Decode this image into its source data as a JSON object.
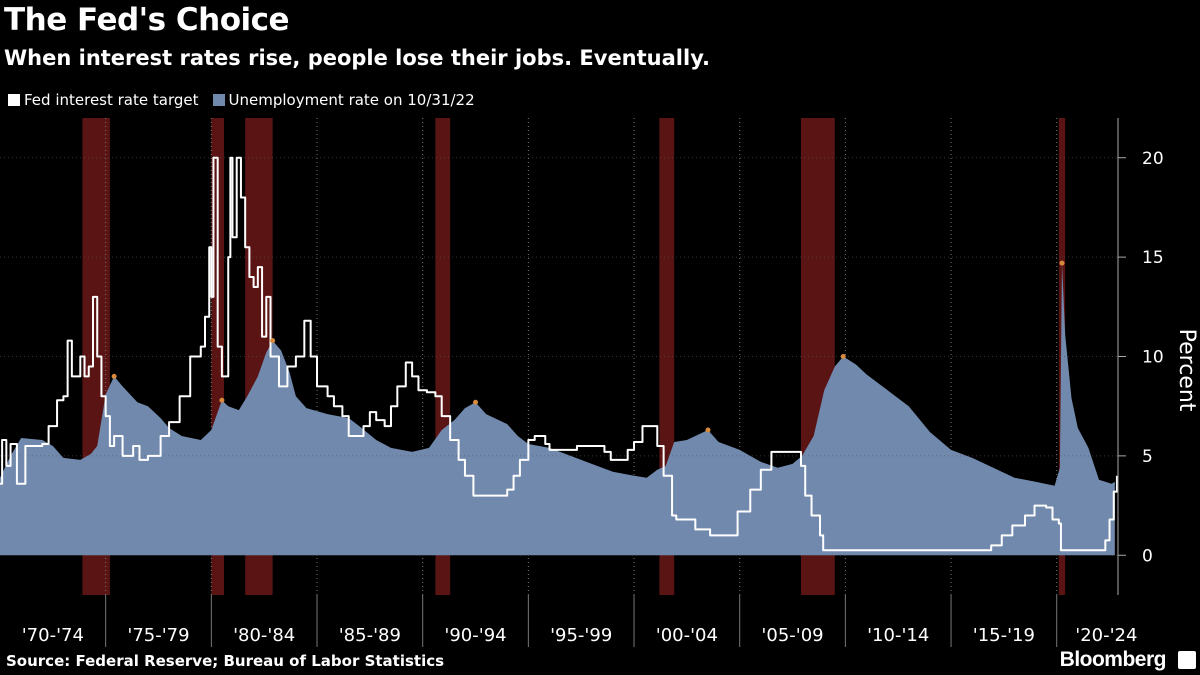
{
  "title": "The Fed's Choice",
  "subtitle": "When interest rates rise, people lose their jobs. Eventually.",
  "source": "Source: Federal Reserve; Bureau of Labor Statistics",
  "brand": "Bloomberg",
  "colors": {
    "background": "#000000",
    "fed_line": "#ffffff",
    "unemployment_area": "#7089ad",
    "recession": "#5a1414",
    "peak_marker": "#d88a3c"
  },
  "chart_data": {
    "type": "area",
    "title": "The Fed's Choice",
    "ylabel": "Percent",
    "ylim": [
      -2,
      22
    ],
    "yticks": [
      0,
      5,
      10,
      15,
      20
    ],
    "xlim": [
      1970.0,
      2022.9
    ],
    "period_labels": [
      "'70-'74",
      "'75-'79",
      "'80-'84",
      "'85-'89",
      "'90-'94",
      "'95-'99",
      "'00-'04",
      "'05-'09",
      "'10-'14",
      "'15-'19",
      "'20-'24"
    ],
    "recessions": [
      [
        1973.9,
        1975.2
      ],
      [
        1980.0,
        1980.6
      ],
      [
        1981.6,
        1982.9
      ],
      [
        1990.6,
        1991.3
      ],
      [
        2001.2,
        2001.9
      ],
      [
        2007.9,
        2009.5
      ],
      [
        2020.1,
        2020.4
      ]
    ],
    "series": [
      {
        "name": "Fed interest rate target",
        "kind": "line",
        "points": [
          [
            1970.0,
            3.6
          ],
          [
            1970.1,
            5.8
          ],
          [
            1970.3,
            4.5
          ],
          [
            1970.5,
            5.6
          ],
          [
            1970.8,
            3.6
          ],
          [
            1971.0,
            3.6
          ],
          [
            1971.2,
            5.5
          ],
          [
            1971.7,
            5.5
          ],
          [
            1972.0,
            5.6
          ],
          [
            1972.3,
            6.5
          ],
          [
            1972.7,
            7.8
          ],
          [
            1973.0,
            8.0
          ],
          [
            1973.2,
            10.8
          ],
          [
            1973.4,
            9.0
          ],
          [
            1973.8,
            10.0
          ],
          [
            1974.0,
            9.0
          ],
          [
            1974.2,
            9.5
          ],
          [
            1974.4,
            13.0
          ],
          [
            1974.6,
            10.0
          ],
          [
            1974.8,
            8.0
          ],
          [
            1975.0,
            7.0
          ],
          [
            1975.2,
            5.5
          ],
          [
            1975.4,
            6.0
          ],
          [
            1975.8,
            5.0
          ],
          [
            1976.0,
            5.0
          ],
          [
            1976.3,
            5.5
          ],
          [
            1976.6,
            4.8
          ],
          [
            1977.0,
            5.0
          ],
          [
            1977.6,
            6.0
          ],
          [
            1978.0,
            6.7
          ],
          [
            1978.5,
            8.0
          ],
          [
            1979.0,
            10.0
          ],
          [
            1979.5,
            10.5
          ],
          [
            1979.7,
            12.0
          ],
          [
            1979.9,
            15.5
          ],
          [
            1980.0,
            13.0
          ],
          [
            1980.1,
            20.0
          ],
          [
            1980.3,
            10.5
          ],
          [
            1980.5,
            9.0
          ],
          [
            1980.8,
            15.0
          ],
          [
            1980.9,
            20.0
          ],
          [
            1981.0,
            16.0
          ],
          [
            1981.2,
            20.0
          ],
          [
            1981.4,
            18.0
          ],
          [
            1981.6,
            15.5
          ],
          [
            1981.8,
            14.0
          ],
          [
            1982.0,
            13.5
          ],
          [
            1982.2,
            14.5
          ],
          [
            1982.4,
            11.0
          ],
          [
            1982.6,
            13.0
          ],
          [
            1982.8,
            10.0
          ],
          [
            1983.2,
            8.5
          ],
          [
            1983.6,
            9.5
          ],
          [
            1984.0,
            10.0
          ],
          [
            1984.4,
            11.8
          ],
          [
            1984.7,
            10.0
          ],
          [
            1985.0,
            8.5
          ],
          [
            1985.5,
            8.0
          ],
          [
            1985.8,
            7.5
          ],
          [
            1986.2,
            7.0
          ],
          [
            1986.5,
            6.0
          ],
          [
            1986.9,
            6.0
          ],
          [
            1987.2,
            6.5
          ],
          [
            1987.5,
            7.2
          ],
          [
            1987.8,
            6.8
          ],
          [
            1988.2,
            6.5
          ],
          [
            1988.5,
            7.5
          ],
          [
            1988.8,
            8.5
          ],
          [
            1989.2,
            9.7
          ],
          [
            1989.5,
            9.0
          ],
          [
            1989.8,
            8.3
          ],
          [
            1990.2,
            8.2
          ],
          [
            1990.6,
            8.0
          ],
          [
            1990.9,
            7.0
          ],
          [
            1991.3,
            5.8
          ],
          [
            1991.7,
            4.8
          ],
          [
            1992.0,
            4.0
          ],
          [
            1992.4,
            3.0
          ],
          [
            1993.0,
            3.0
          ],
          [
            1993.6,
            3.0
          ],
          [
            1994.0,
            3.3
          ],
          [
            1994.3,
            4.0
          ],
          [
            1994.6,
            4.8
          ],
          [
            1995.0,
            5.8
          ],
          [
            1995.3,
            6.0
          ],
          [
            1995.8,
            5.6
          ],
          [
            1996.0,
            5.3
          ],
          [
            1997.3,
            5.5
          ],
          [
            1998.6,
            5.2
          ],
          [
            1998.9,
            4.8
          ],
          [
            1999.3,
            4.8
          ],
          [
            1999.7,
            5.3
          ],
          [
            2000.0,
            5.7
          ],
          [
            2000.4,
            6.5
          ],
          [
            2000.9,
            6.5
          ],
          [
            2001.1,
            5.5
          ],
          [
            2001.4,
            4.0
          ],
          [
            2001.8,
            2.0
          ],
          [
            2002.0,
            1.8
          ],
          [
            2002.9,
            1.3
          ],
          [
            2003.6,
            1.0
          ],
          [
            2004.4,
            1.0
          ],
          [
            2004.9,
            2.2
          ],
          [
            2005.5,
            3.3
          ],
          [
            2006.0,
            4.3
          ],
          [
            2006.5,
            5.2
          ],
          [
            2007.6,
            5.2
          ],
          [
            2007.9,
            4.5
          ],
          [
            2008.1,
            3.0
          ],
          [
            2008.4,
            2.0
          ],
          [
            2008.8,
            1.0
          ],
          [
            2008.95,
            0.25
          ],
          [
            2015.9,
            0.25
          ],
          [
            2016.9,
            0.5
          ],
          [
            2017.4,
            1.0
          ],
          [
            2017.9,
            1.5
          ],
          [
            2018.5,
            2.0
          ],
          [
            2018.95,
            2.5
          ],
          [
            2019.5,
            2.4
          ],
          [
            2019.8,
            1.8
          ],
          [
            2020.1,
            1.6
          ],
          [
            2020.2,
            0.25
          ],
          [
            2022.1,
            0.25
          ],
          [
            2022.3,
            0.75
          ],
          [
            2022.5,
            1.8
          ],
          [
            2022.7,
            3.2
          ],
          [
            2022.85,
            4.0
          ]
        ]
      },
      {
        "name": "Unemployment rate on 10/31/22",
        "kind": "area",
        "points": [
          [
            1970.0,
            3.9
          ],
          [
            1970.5,
            5.0
          ],
          [
            1971.0,
            5.9
          ],
          [
            1972.0,
            5.8
          ],
          [
            1972.5,
            5.5
          ],
          [
            1973.0,
            4.9
          ],
          [
            1973.8,
            4.8
          ],
          [
            1974.3,
            5.1
          ],
          [
            1974.6,
            5.5
          ],
          [
            1975.0,
            8.1
          ],
          [
            1975.4,
            9.0
          ],
          [
            1975.8,
            8.5
          ],
          [
            1976.5,
            7.7
          ],
          [
            1977.0,
            7.5
          ],
          [
            1977.6,
            6.9
          ],
          [
            1978.0,
            6.4
          ],
          [
            1978.6,
            6.0
          ],
          [
            1979.5,
            5.8
          ],
          [
            1980.0,
            6.3
          ],
          [
            1980.5,
            7.8
          ],
          [
            1980.8,
            7.5
          ],
          [
            1981.3,
            7.3
          ],
          [
            1981.7,
            8.0
          ],
          [
            1982.2,
            9.0
          ],
          [
            1982.6,
            10.2
          ],
          [
            1982.9,
            10.8
          ],
          [
            1983.3,
            10.3
          ],
          [
            1983.7,
            9.2
          ],
          [
            1984.0,
            8.0
          ],
          [
            1984.5,
            7.4
          ],
          [
            1985.5,
            7.1
          ],
          [
            1986.5,
            6.9
          ],
          [
            1987.0,
            6.5
          ],
          [
            1987.8,
            5.8
          ],
          [
            1988.5,
            5.4
          ],
          [
            1989.5,
            5.2
          ],
          [
            1990.3,
            5.4
          ],
          [
            1990.9,
            6.3
          ],
          [
            1991.5,
            6.8
          ],
          [
            1992.0,
            7.4
          ],
          [
            1992.5,
            7.7
          ],
          [
            1993.0,
            7.1
          ],
          [
            1994.0,
            6.6
          ],
          [
            1994.5,
            6.0
          ],
          [
            1995.0,
            5.6
          ],
          [
            1996.0,
            5.4
          ],
          [
            1997.0,
            5.0
          ],
          [
            1998.0,
            4.6
          ],
          [
            1999.0,
            4.2
          ],
          [
            2000.0,
            4.0
          ],
          [
            2000.6,
            3.9
          ],
          [
            2001.1,
            4.3
          ],
          [
            2001.5,
            4.5
          ],
          [
            2001.9,
            5.7
          ],
          [
            2002.5,
            5.8
          ],
          [
            2003.5,
            6.3
          ],
          [
            2004.0,
            5.7
          ],
          [
            2005.0,
            5.3
          ],
          [
            2006.0,
            4.7
          ],
          [
            2006.8,
            4.4
          ],
          [
            2007.5,
            4.6
          ],
          [
            2007.95,
            5.0
          ],
          [
            2008.5,
            6.0
          ],
          [
            2009.0,
            8.3
          ],
          [
            2009.5,
            9.5
          ],
          [
            2009.9,
            10.0
          ],
          [
            2010.5,
            9.6
          ],
          [
            2011.0,
            9.1
          ],
          [
            2012.0,
            8.3
          ],
          [
            2013.0,
            7.5
          ],
          [
            2014.0,
            6.2
          ],
          [
            2015.0,
            5.3
          ],
          [
            2016.0,
            4.9
          ],
          [
            2017.0,
            4.4
          ],
          [
            2018.0,
            3.9
          ],
          [
            2019.0,
            3.7
          ],
          [
            2019.9,
            3.5
          ],
          [
            2020.15,
            4.4
          ],
          [
            2020.25,
            14.7
          ],
          [
            2020.4,
            11.1
          ],
          [
            2020.7,
            7.9
          ],
          [
            2021.0,
            6.4
          ],
          [
            2021.5,
            5.4
          ],
          [
            2022.0,
            3.8
          ],
          [
            2022.6,
            3.6
          ],
          [
            2022.75,
            3.7
          ]
        ]
      }
    ],
    "peak_markers": [
      [
        1975.4,
        9.0
      ],
      [
        1980.5,
        7.8
      ],
      [
        1982.9,
        10.8
      ],
      [
        1992.5,
        7.7
      ],
      [
        2003.5,
        6.3
      ],
      [
        2009.9,
        10.0
      ],
      [
        2020.25,
        14.7
      ]
    ]
  }
}
